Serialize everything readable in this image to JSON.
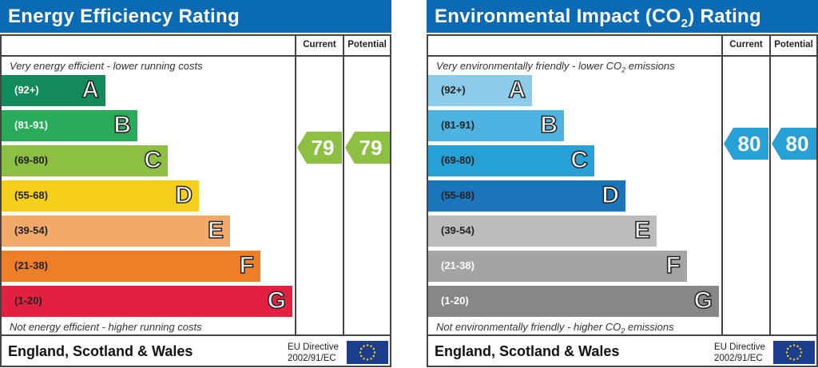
{
  "panels": [
    {
      "title": "Energy Efficiency Rating",
      "current_label": "Current",
      "potential_label": "Potential",
      "top_note": "Very energy efficient - lower running costs",
      "bottom_note": "Not energy efficient - higher running costs",
      "region": "England, Scotland & Wales",
      "directive_line1": "EU Directive",
      "directive_line2": "2002/91/EC",
      "arrow_color": "#8cbf42",
      "bands": [
        {
          "range": "(92+)",
          "letter": "A",
          "color": "#138a5b",
          "text": "#fff"
        },
        {
          "range": "(81-91)",
          "letter": "B",
          "color": "#2aab5a",
          "text": "#fff"
        },
        {
          "range": "(69-80)",
          "letter": "C",
          "color": "#8cbf42",
          "text": "#222"
        },
        {
          "range": "(55-68)",
          "letter": "D",
          "color": "#f6cf1c",
          "text": "#222"
        },
        {
          "range": "(39-54)",
          "letter": "E",
          "color": "#f3a96a",
          "text": "#222"
        },
        {
          "range": "(21-38)",
          "letter": "F",
          "color": "#ee7e27",
          "text": "#222"
        },
        {
          "range": "(1-20)",
          "letter": "G",
          "color": "#e2203f",
          "text": "#222"
        }
      ],
      "current": 79,
      "potential": 79
    },
    {
      "title_pre": "Environmental Impact (CO",
      "title_sub": "2",
      "title_post": ") Rating",
      "current_label": "Current",
      "potential_label": "Potential",
      "top_note_pre": "Very environmentally friendly - lower CO",
      "top_note_sub": "2",
      "top_note_post": " emissions",
      "bottom_note_pre": "Not environmentally friendly - higher CO",
      "bottom_note_sub": "2",
      "bottom_note_post": " emissions",
      "region": "England, Scotland & Wales",
      "directive_line1": "EU Directive",
      "directive_line2": "2002/91/EC",
      "arrow_color": "#27a0d6",
      "bands": [
        {
          "range": "(92+)",
          "letter": "A",
          "color": "#8ccbe9",
          "text": "#222"
        },
        {
          "range": "(81-91)",
          "letter": "B",
          "color": "#4fb3e2",
          "text": "#222"
        },
        {
          "range": "(69-80)",
          "letter": "C",
          "color": "#27a0d6",
          "text": "#222"
        },
        {
          "range": "(55-68)",
          "letter": "D",
          "color": "#1a75bb",
          "text": "#222"
        },
        {
          "range": "(39-54)",
          "letter": "E",
          "color": "#bcbcbc",
          "text": "#222"
        },
        {
          "range": "(21-38)",
          "letter": "F",
          "color": "#a4a4a4",
          "text": "#fff"
        },
        {
          "range": "(1-20)",
          "letter": "G",
          "color": "#878787",
          "text": "#fff"
        }
      ],
      "current": 80,
      "potential": 80
    }
  ]
}
